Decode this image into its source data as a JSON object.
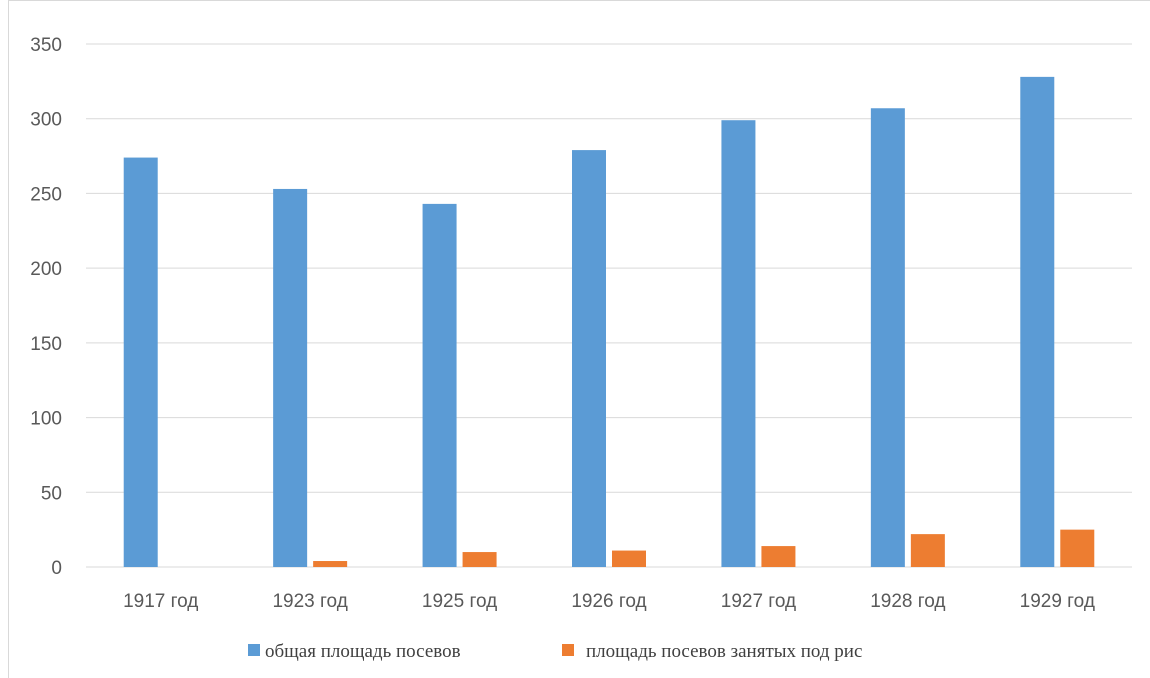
{
  "chart_data": {
    "type": "bar",
    "categories": [
      "1917 год",
      "1923 год",
      "1925 год",
      "1926 год",
      "1927 год",
      "1928 год",
      "1929 год"
    ],
    "series": [
      {
        "name": "общая площадь посевов",
        "color": "#5b9bd5",
        "values": [
          274,
          253,
          243,
          279,
          299,
          307,
          328
        ]
      },
      {
        "name": "площадь посевов занятых под рис",
        "color": "#ed7d31",
        "values": [
          0,
          4,
          10,
          11,
          14,
          22,
          25
        ]
      }
    ],
    "ylim": [
      0,
      350
    ],
    "yticks": [
      0,
      50,
      100,
      150,
      200,
      250,
      300,
      350
    ],
    "grid": true,
    "legend_position": "bottom"
  }
}
